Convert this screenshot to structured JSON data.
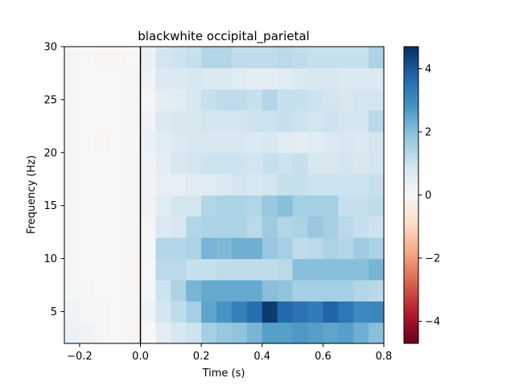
{
  "chart_data": {
    "type": "heatmap",
    "title": "blackwhite occipital_parietal",
    "xlabel": "Time (s)",
    "ylabel": "Frequency (Hz)",
    "xlim": [
      -0.25,
      0.8
    ],
    "ylim": [
      2,
      30
    ],
    "x_ticks": [
      -0.2,
      0.0,
      0.2,
      0.4,
      0.6,
      0.8
    ],
    "x_tick_labels": [
      "−0.2",
      "0.0",
      "0.2",
      "0.4",
      "0.6",
      "0.8"
    ],
    "y_ticks": [
      5,
      10,
      15,
      20,
      25,
      30
    ],
    "y_tick_labels": [
      "5",
      "10",
      "15",
      "20",
      "25",
      "30"
    ],
    "colorbar": {
      "colormap": "RdBu_r",
      "vmin": -4.7,
      "vmax": 4.7,
      "ticks": [
        -4,
        -2,
        0,
        2,
        4
      ],
      "tick_labels": [
        "−4",
        "−2",
        "0",
        "2",
        "4"
      ]
    },
    "event_line_x": 0.0,
    "time_edges": [
      -0.25,
      -0.2,
      -0.15,
      -0.1,
      -0.05,
      0.0,
      0.05,
      0.1,
      0.15,
      0.2,
      0.25,
      0.3,
      0.35,
      0.4,
      0.45,
      0.5,
      0.55,
      0.6,
      0.65,
      0.7,
      0.75,
      0.8
    ],
    "freq_edges": [
      2,
      4,
      6,
      8,
      10,
      12,
      14,
      16,
      18,
      20,
      22,
      24,
      26,
      28,
      30
    ],
    "values": [
      [
        0.3,
        0.2,
        0.1,
        0.0,
        -0.1,
        0.0,
        0.5,
        0.8,
        1.0,
        1.6,
        1.8,
        1.9,
        2.2,
        2.6,
        2.6,
        2.7,
        2.6,
        2.5,
        2.6,
        2.3,
        2.0
      ],
      [
        0.2,
        0.1,
        0.1,
        0.0,
        -0.1,
        0.2,
        0.9,
        1.2,
        1.6,
        2.5,
        2.8,
        3.2,
        3.6,
        4.5,
        3.7,
        3.5,
        3.3,
        3.8,
        3.4,
        3.0,
        3.1
      ],
      [
        0.1,
        0.1,
        0.0,
        0.0,
        -0.1,
        0.1,
        1.0,
        1.5,
        2.2,
        2.4,
        2.4,
        2.4,
        2.4,
        2.0,
        1.9,
        1.6,
        1.6,
        1.6,
        1.6,
        1.4,
        1.3
      ],
      [
        0.1,
        0.0,
        0.0,
        0.0,
        -0.1,
        0.0,
        1.3,
        1.3,
        1.1,
        1.1,
        1.2,
        1.2,
        1.2,
        1.2,
        1.3,
        2.0,
        2.0,
        2.0,
        2.0,
        2.0,
        2.2
      ],
      [
        0.1,
        0.0,
        0.0,
        0.0,
        -0.1,
        0.1,
        1.4,
        1.4,
        1.5,
        2.2,
        2.1,
        2.3,
        2.3,
        1.8,
        1.6,
        1.2,
        1.3,
        1.5,
        1.4,
        1.7,
        1.5
      ],
      [
        0.1,
        0.0,
        0.0,
        0.0,
        -0.1,
        0.1,
        0.7,
        0.8,
        1.4,
        1.5,
        1.5,
        1.5,
        1.3,
        1.7,
        1.4,
        1.5,
        1.8,
        1.6,
        1.3,
        1.1,
        1.0
      ],
      [
        0.1,
        0.0,
        0.0,
        0.0,
        -0.1,
        0.2,
        0.6,
        0.9,
        0.9,
        1.4,
        1.5,
        1.5,
        1.4,
        1.8,
        2.0,
        1.6,
        1.6,
        1.6,
        1.1,
        1.1,
        1.2
      ],
      [
        0.1,
        0.0,
        0.0,
        0.0,
        -0.1,
        0.2,
        0.4,
        0.4,
        0.6,
        0.6,
        0.7,
        0.9,
        0.8,
        0.9,
        1.1,
        1.1,
        1.0,
        1.0,
        1.0,
        1.0,
        1.1
      ],
      [
        0.1,
        0.0,
        0.0,
        0.0,
        -0.1,
        0.2,
        0.5,
        0.8,
        0.9,
        1.0,
        1.0,
        1.0,
        0.9,
        1.1,
        1.0,
        1.1,
        0.8,
        0.8,
        0.9,
        0.8,
        0.9
      ],
      [
        0.1,
        0.0,
        -0.1,
        0.0,
        -0.1,
        0.3,
        0.6,
        0.7,
        0.8,
        0.8,
        0.8,
        0.8,
        0.7,
        0.8,
        0.6,
        0.5,
        0.6,
        0.7,
        0.8,
        0.7,
        0.9
      ],
      [
        0.1,
        0.0,
        0.0,
        0.0,
        -0.1,
        0.2,
        0.7,
        0.8,
        0.8,
        0.9,
        0.9,
        0.9,
        1.0,
        1.0,
        1.1,
        1.0,
        0.9,
        1.0,
        0.9,
        0.9,
        1.3
      ],
      [
        0.1,
        0.0,
        0.0,
        0.0,
        -0.1,
        0.1,
        0.5,
        0.6,
        0.8,
        1.1,
        1.2,
        1.2,
        1.1,
        1.4,
        1.1,
        1.1,
        1.0,
        0.9,
        0.8,
        0.9,
        0.9
      ],
      [
        0.1,
        0.0,
        0.0,
        0.0,
        -0.1,
        0.2,
        0.7,
        0.7,
        0.8,
        0.7,
        0.7,
        0.6,
        0.5,
        0.5,
        0.6,
        0.7,
        0.8,
        0.8,
        0.7,
        0.7,
        0.7
      ],
      [
        0.1,
        0.0,
        -0.1,
        -0.1,
        0.0,
        0.3,
        0.9,
        1.0,
        1.1,
        1.4,
        1.4,
        1.2,
        1.2,
        1.2,
        1.3,
        1.2,
        1.1,
        1.1,
        1.1,
        1.1,
        1.5
      ]
    ]
  }
}
